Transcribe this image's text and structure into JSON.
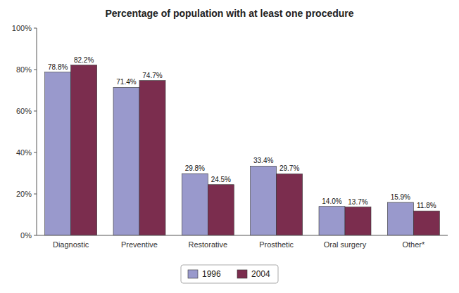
{
  "chart_data": {
    "type": "bar",
    "title": "Percentage of population with at least one procedure",
    "categories": [
      "Diagnostic",
      "Preventive",
      "Restorative",
      "Prosthetic",
      "Oral surgery",
      "Other*"
    ],
    "series": [
      {
        "name": "1996",
        "color": "#9999cc",
        "values": [
          78.8,
          71.4,
          29.8,
          33.4,
          14.0,
          15.9
        ],
        "value_labels": [
          "78.8%",
          "71.4%",
          "29.8%",
          "33.4%",
          "14.0%",
          "15.9%"
        ]
      },
      {
        "name": "2004",
        "color": "#7b2d4e",
        "values": [
          82.2,
          74.7,
          24.5,
          29.7,
          13.7,
          11.8
        ],
        "value_labels": [
          "82.2%",
          "74.7%",
          "24.5%",
          "29.7%",
          "13.7%",
          "11.8%"
        ]
      }
    ],
    "ylim": [
      0,
      100
    ],
    "yticks": [
      {
        "value": 0,
        "label": "0%"
      },
      {
        "value": 20,
        "label": "20%"
      },
      {
        "value": 40,
        "label": "40%"
      },
      {
        "value": 60,
        "label": "60%"
      },
      {
        "value": 80,
        "label": "80%"
      },
      {
        "value": 100,
        "label": "100%"
      }
    ],
    "grid": false,
    "legend": "bottom",
    "data_labels": true
  }
}
